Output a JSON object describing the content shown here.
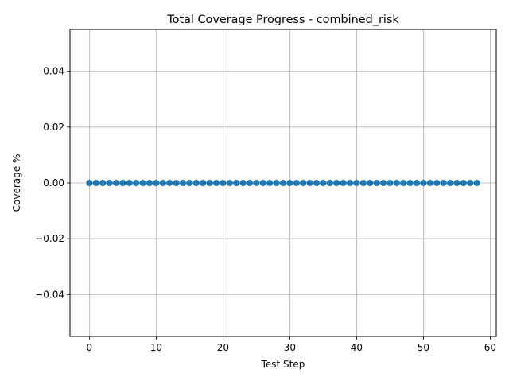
{
  "chart_data": {
    "type": "line",
    "title": "Total Coverage Progress - combined_risk",
    "xlabel": "Test Step",
    "ylabel": "Coverage %",
    "x": [
      0,
      1,
      2,
      3,
      4,
      5,
      6,
      7,
      8,
      9,
      10,
      11,
      12,
      13,
      14,
      15,
      16,
      17,
      18,
      19,
      20,
      21,
      22,
      23,
      24,
      25,
      26,
      27,
      28,
      29,
      30,
      31,
      32,
      33,
      34,
      35,
      36,
      37,
      38,
      39,
      40,
      41,
      42,
      43,
      44,
      45,
      46,
      47,
      48,
      49,
      50,
      51,
      52,
      53,
      54,
      55,
      56,
      57,
      58
    ],
    "series": [
      {
        "values": [
          0,
          0,
          0,
          0,
          0,
          0,
          0,
          0,
          0,
          0,
          0,
          0,
          0,
          0,
          0,
          0,
          0,
          0,
          0,
          0,
          0,
          0,
          0,
          0,
          0,
          0,
          0,
          0,
          0,
          0,
          0,
          0,
          0,
          0,
          0,
          0,
          0,
          0,
          0,
          0,
          0,
          0,
          0,
          0,
          0,
          0,
          0,
          0,
          0,
          0,
          0,
          0,
          0,
          0,
          0,
          0,
          0,
          0,
          0
        ],
        "color": "#1f77b4",
        "marker": "circle"
      }
    ],
    "xlim": [
      -2.9,
      60.9
    ],
    "ylim": [
      -0.055,
      0.055
    ],
    "xticks": [
      0,
      10,
      20,
      30,
      40,
      50,
      60
    ],
    "xtick_labels": [
      "0",
      "10",
      "20",
      "30",
      "40",
      "50",
      "60"
    ],
    "yticks": [
      -0.04,
      -0.02,
      0.0,
      0.02,
      0.04
    ],
    "ytick_labels": [
      "−0.04",
      "−0.02",
      "0.00",
      "0.02",
      "0.04"
    ],
    "grid": true,
    "colors": {
      "series": "#1f77b4",
      "grid": "#b0b0b0",
      "axes": "#000000"
    }
  }
}
